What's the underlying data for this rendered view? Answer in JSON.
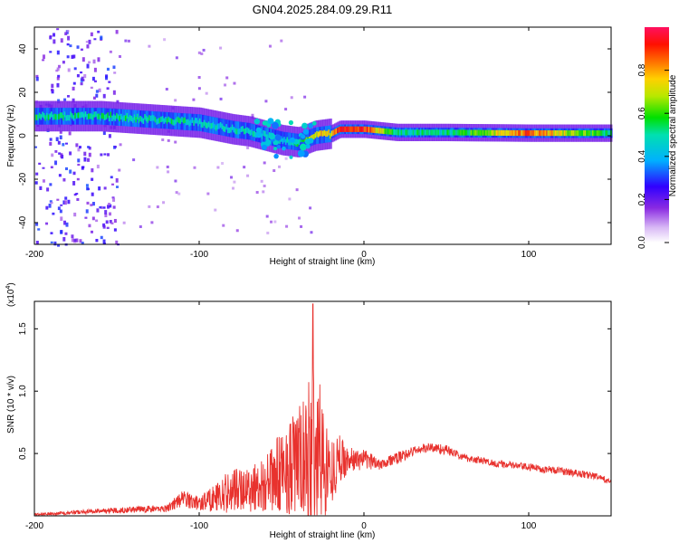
{
  "title": "GN04.2025.284.09.29.R11",
  "chart_data": [
    {
      "type": "heatmap",
      "name": "spectrogram",
      "xlabel": "Height of straight line (km)",
      "ylabel": "Frequency (Hz)",
      "xlim": [
        -200,
        150
      ],
      "ylim": [
        -50,
        50
      ],
      "xticks": [
        -200,
        -100,
        0,
        100
      ],
      "yticks": [
        -40,
        -20,
        0,
        20,
        40
      ],
      "colorbar": {
        "label": "Normalized spectral amplitude",
        "range": [
          0,
          1
        ],
        "ticks": [
          "0.0",
          "0.2",
          "0.4",
          "0.6",
          "0.8"
        ]
      },
      "ridge": {
        "description": "dominant frequency line",
        "x": [
          -200,
          -180,
          -160,
          -140,
          -120,
          -100,
          -80,
          -70,
          -60,
          -50,
          -40,
          -30,
          -20,
          -15,
          0,
          20,
          50,
          100,
          150
        ],
        "freq_hz": [
          9,
          9,
          9,
          8,
          7,
          6,
          3,
          2,
          0,
          -2,
          -3,
          0,
          1,
          3,
          3,
          1.5,
          1.5,
          1.2,
          1.2
        ],
        "amplitude": [
          0.55,
          0.5,
          0.5,
          0.5,
          0.5,
          0.45,
          0.45,
          0.5,
          0.5,
          0.45,
          0.5,
          0.75,
          0.7,
          0.95,
          0.9,
          0.5,
          0.5,
          0.85,
          0.5
        ]
      }
    },
    {
      "type": "line",
      "name": "snr",
      "xlabel": "Height of straight line (km)",
      "ylabel": "SNR (10 * v/v)",
      "yscale_label": "(x10",
      "yscale_exp": "4",
      "yscale_close": ")",
      "xlim": [
        -200,
        150
      ],
      "ylim": [
        0,
        1.72
      ],
      "xticks": [
        -200,
        -100,
        0,
        100
      ],
      "yticks": [
        "0.5",
        "1.0",
        "1.5"
      ],
      "color": "#e8322e",
      "envelope_x": [
        -200,
        -160,
        -120,
        -110,
        -100,
        -80,
        -60,
        -45,
        -35,
        -30,
        -25,
        -20,
        -15,
        -10,
        0,
        10,
        20,
        30,
        40,
        50,
        60,
        80,
        100,
        120,
        140,
        150
      ],
      "envelope_mean": [
        0.01,
        0.04,
        0.06,
        0.14,
        0.1,
        0.2,
        0.25,
        0.4,
        0.45,
        0.55,
        0.45,
        0.35,
        0.45,
        0.45,
        0.45,
        0.42,
        0.46,
        0.52,
        0.55,
        0.53,
        0.47,
        0.42,
        0.39,
        0.36,
        0.32,
        0.27
      ],
      "envelope_spread": [
        0.01,
        0.02,
        0.03,
        0.07,
        0.06,
        0.18,
        0.22,
        0.4,
        0.5,
        0.85,
        0.5,
        0.25,
        0.22,
        0.1,
        0.08,
        0.05,
        0.05,
        0.04,
        0.04,
        0.04,
        0.03,
        0.03,
        0.03,
        0.03,
        0.03,
        0.02
      ],
      "peak": {
        "x": -31,
        "y": 1.7
      }
    }
  ],
  "colors": {
    "frame": "#000000",
    "colormap": [
      "#ffffff",
      "#8a2be2",
      "#3000ff",
      "#00c8ff",
      "#00e676",
      "#ffd500",
      "#ff7000",
      "#ff0000",
      "#ff1060"
    ]
  }
}
